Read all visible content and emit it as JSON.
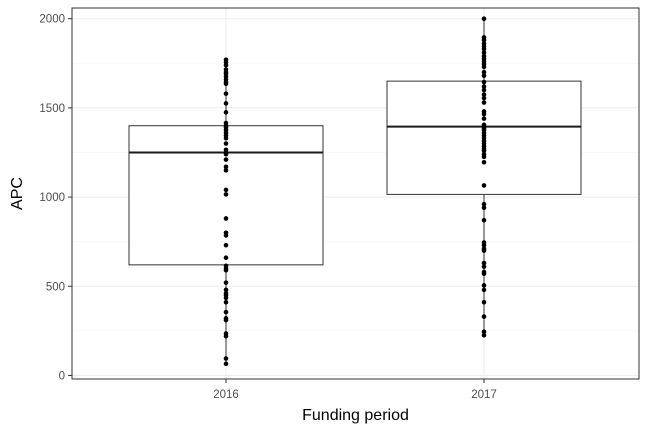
{
  "chart_data": {
    "type": "box",
    "xlabel": "Funding period",
    "ylabel": "APC",
    "ylim": [
      -20,
      2060
    ],
    "y_ticks": [
      0,
      500,
      1000,
      1500,
      2000
    ],
    "y_tick_labels": [
      "0",
      "500",
      "1000",
      "1500",
      "2000"
    ],
    "grid": true,
    "categories": [
      "2016",
      "2017"
    ],
    "boxes": [
      {
        "category": "2016",
        "min": 65,
        "q1": 620,
        "median": 1250,
        "q3": 1400,
        "max": 1770
      },
      {
        "category": "2017",
        "min": 225,
        "q1": 1015,
        "median": 1395,
        "q3": 1650,
        "max": 2000
      }
    ],
    "points": [
      {
        "category": "2016",
        "values": [
          1770,
          1755,
          1740,
          1715,
          1700,
          1690,
          1675,
          1660,
          1645,
          1635,
          1580,
          1525,
          1475,
          1415,
          1400,
          1390,
          1375,
          1360,
          1345,
          1330,
          1300,
          1265,
          1250,
          1240,
          1210,
          1170,
          1150,
          1040,
          1015,
          880,
          800,
          785,
          730,
          660,
          615,
          600,
          590,
          520,
          480,
          460,
          450,
          435,
          410,
          355,
          320,
          310,
          235,
          220,
          95,
          65
        ]
      },
      {
        "category": "2017",
        "values": [
          2000,
          1895,
          1880,
          1860,
          1845,
          1830,
          1810,
          1790,
          1775,
          1760,
          1745,
          1730,
          1700,
          1680,
          1645,
          1620,
          1600,
          1575,
          1555,
          1530,
          1480,
          1465,
          1440,
          1405,
          1395,
          1385,
          1375,
          1360,
          1345,
          1330,
          1315,
          1300,
          1285,
          1270,
          1260,
          1240,
          1225,
          1195,
          1065,
          960,
          940,
          870,
          745,
          730,
          710,
          700,
          630,
          610,
          580,
          570,
          505,
          480,
          410,
          330,
          245,
          225
        ]
      }
    ]
  },
  "colors": {
    "panel_border": "#333333",
    "grid_major": "#ebebeb",
    "grid_minor": "#f5f5f5",
    "box_stroke": "#333333",
    "median_stroke": "#1a1a1a",
    "point_fill": "#000000"
  }
}
